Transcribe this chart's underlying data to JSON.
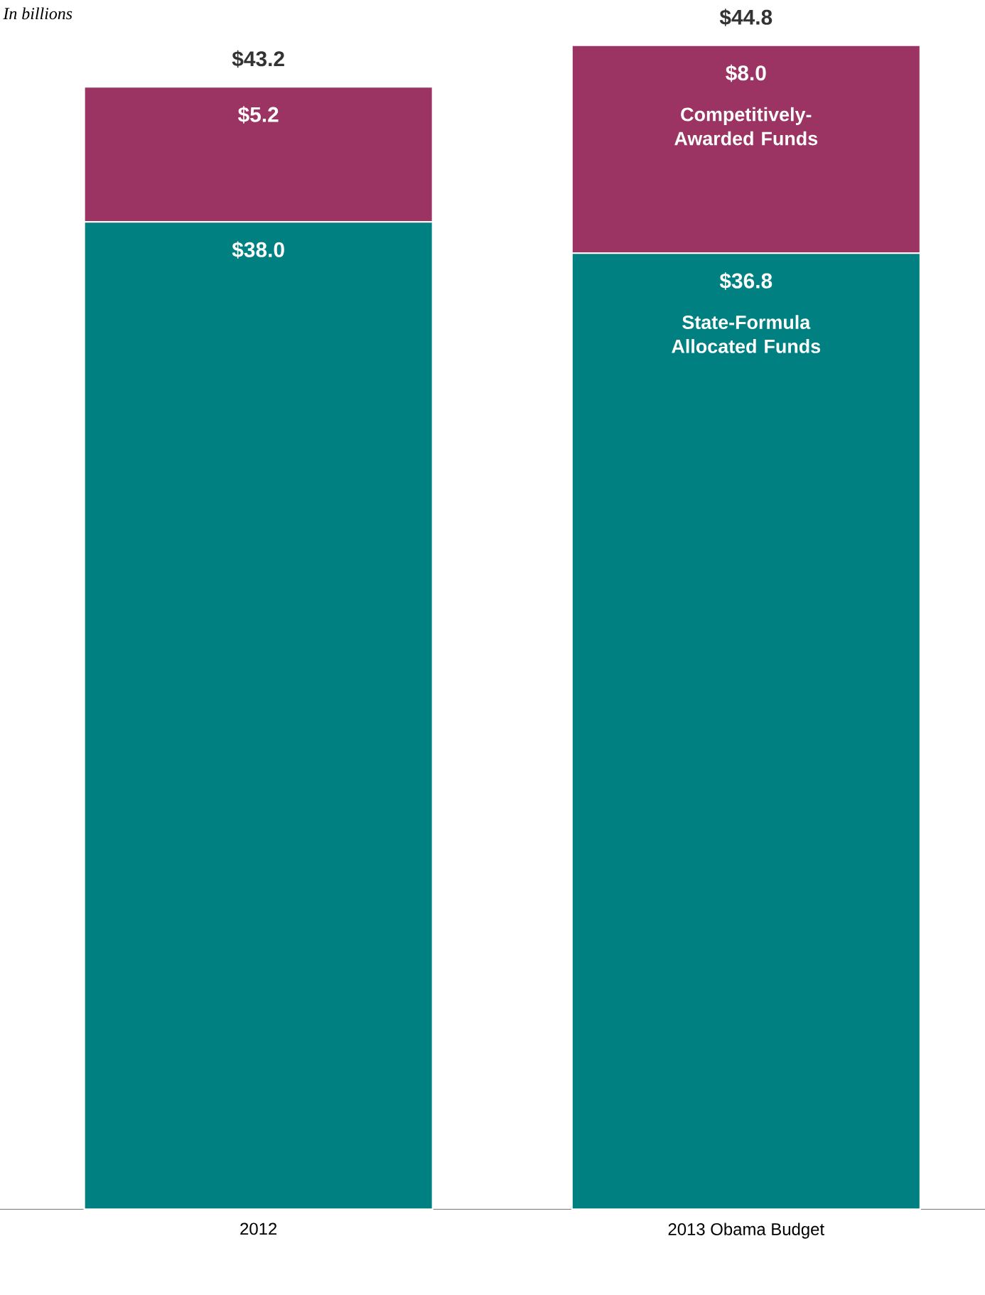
{
  "chart_data": {
    "type": "bar",
    "stacked": true,
    "subtitle": "In billions",
    "categories": [
      "2012",
      "2013 Obama Budget"
    ],
    "series": [
      {
        "name": "State-Formula Allocated Funds",
        "color": "#008080",
        "values": [
          38.0,
          36.8
        ],
        "value_labels": [
          "$38.0",
          "$36.8"
        ]
      },
      {
        "name": "Competitively-Awarded Funds",
        "color": "#9b3363",
        "values": [
          5.2,
          8.0
        ],
        "value_labels": [
          "$5.2",
          "$8.0"
        ]
      }
    ],
    "totals": [
      "$43.2",
      "$44.8"
    ]
  }
}
